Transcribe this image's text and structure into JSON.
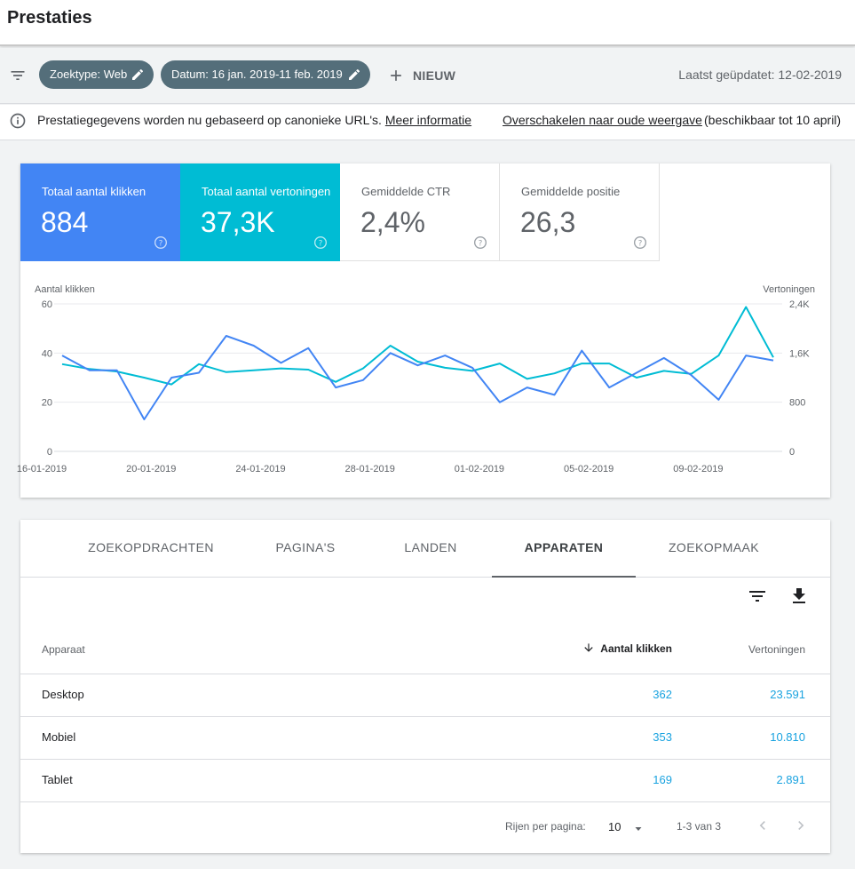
{
  "page": {
    "title": "Prestaties"
  },
  "filters": {
    "chips": [
      {
        "label": "Zoektype: Web"
      },
      {
        "label": "Datum: 16 jan. 2019-11 feb. 2019"
      }
    ],
    "new_label": "NIEUW",
    "last_updated": "Laatst geüpdatet: 12-02-2019"
  },
  "info": {
    "text": "Prestatiegegevens worden nu gebaseerd op canonieke URL's.",
    "more_link": "Meer informatie",
    "switch_link": "Overschakelen naar oude weergave",
    "availability": "(beschikbaar tot 10 april)"
  },
  "metrics": [
    {
      "label": "Totaal aantal klikken",
      "value": "884"
    },
    {
      "label": "Totaal aantal vertoningen",
      "value": "37,3K"
    },
    {
      "label": "Gemiddelde CTR",
      "value": "2,4%"
    },
    {
      "label": "Gemiddelde positie",
      "value": "26,3"
    }
  ],
  "colors": {
    "clicks": "#4285f4",
    "impressions": "#00bcd4",
    "link": "#1aa3e0",
    "chip": "#546e7a"
  },
  "chart_data": {
    "type": "line",
    "ylabel": "Aantal klikken",
    "y2label": "Vertoningen",
    "ylim": [
      0,
      60
    ],
    "y2lim": [
      0,
      2400
    ],
    "yticks": [
      "0",
      "20",
      "40",
      "60"
    ],
    "y2ticks": [
      "0",
      "800",
      "1,6K",
      "2,4K"
    ],
    "xticks": [
      "16-01-2019",
      "20-01-2019",
      "24-01-2019",
      "28-01-2019",
      "01-02-2019",
      "05-02-2019",
      "09-02-2019"
    ],
    "x": [
      "16-01-2019",
      "17-01-2019",
      "18-01-2019",
      "19-01-2019",
      "20-01-2019",
      "21-01-2019",
      "22-01-2019",
      "23-01-2019",
      "24-01-2019",
      "25-01-2019",
      "26-01-2019",
      "27-01-2019",
      "28-01-2019",
      "29-01-2019",
      "30-01-2019",
      "31-01-2019",
      "01-02-2019",
      "02-02-2019",
      "03-02-2019",
      "04-02-2019",
      "05-02-2019",
      "06-02-2019",
      "07-02-2019",
      "08-02-2019",
      "09-02-2019",
      "10-02-2019",
      "11-02-2019"
    ],
    "grid": true,
    "series": [
      {
        "name": "Aantal klikken",
        "axis": "left",
        "values": [
          39,
          33,
          33,
          13,
          30,
          32,
          47,
          43,
          36,
          42,
          26,
          29,
          40,
          35,
          39,
          34,
          20,
          26,
          23,
          41,
          26,
          32,
          38,
          31,
          21,
          39,
          37
        ]
      },
      {
        "name": "Vertoningen",
        "axis": "right",
        "values": [
          1420,
          1340,
          1300,
          1200,
          1090,
          1420,
          1290,
          1320,
          1350,
          1330,
          1130,
          1350,
          1720,
          1460,
          1360,
          1310,
          1430,
          1180,
          1270,
          1430,
          1430,
          1200,
          1310,
          1260,
          1560,
          2350,
          1530
        ]
      }
    ]
  },
  "tabs": [
    "ZOEKOPDRACHTEN",
    "PAGINA'S",
    "LANDEN",
    "APPARATEN",
    "ZOEKOPMAAK"
  ],
  "active_tab": "APPARATEN",
  "table": {
    "columns": [
      "Apparaat",
      "Aantal klikken",
      "Vertoningen"
    ],
    "rows": [
      {
        "device": "Desktop",
        "clicks": "362",
        "impressions": "23.591"
      },
      {
        "device": "Mobiel",
        "clicks": "353",
        "impressions": "10.810"
      },
      {
        "device": "Tablet",
        "clicks": "169",
        "impressions": "2.891"
      }
    ]
  },
  "pagination": {
    "rows_label": "Rijen per pagina:",
    "rows_value": "10",
    "range": "1-3 van 3"
  }
}
